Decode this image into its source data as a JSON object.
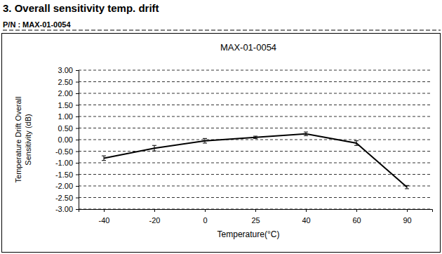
{
  "header": {
    "section": "3. Overall sensitivity temp. drift",
    "part_number": "P/N : MAX-01-0054"
  },
  "chart_data": {
    "type": "line",
    "title": "MAX-01-0054",
    "x_label": "Temperature(°C)",
    "y_label": "Temperature Drift Overall Sensitivity (dB)",
    "categories": [
      "-40",
      "-20",
      "0",
      "25",
      "40",
      "60",
      "90"
    ],
    "values": [
      -0.8,
      -0.37,
      -0.05,
      0.1,
      0.25,
      -0.15,
      -2.05
    ],
    "errors": [
      0.1,
      0.12,
      0.1,
      0.05,
      0.08,
      0.1,
      0.07
    ],
    "color": "#000000",
    "ylim": [
      -3,
      3
    ],
    "yticks": [
      {
        "value": -3,
        "label": "-3.00"
      },
      {
        "value": -2.5,
        "label": "-2.50"
      },
      {
        "value": -2,
        "label": "-2.00"
      },
      {
        "value": -1.5,
        "label": "-1.50"
      },
      {
        "value": -1,
        "label": "-1.00"
      },
      {
        "value": -0.5,
        "label": "-0.50"
      },
      {
        "value": 0,
        "label": "0.00"
      },
      {
        "value": 0.5,
        "label": "0.50"
      },
      {
        "value": 1,
        "label": "1.00"
      },
      {
        "value": 1.5,
        "label": "1.50"
      },
      {
        "value": 2,
        "label": "2.00"
      },
      {
        "value": 2.5,
        "label": "2.50"
      },
      {
        "value": 3,
        "label": "3.00"
      }
    ],
    "grid": true
  }
}
